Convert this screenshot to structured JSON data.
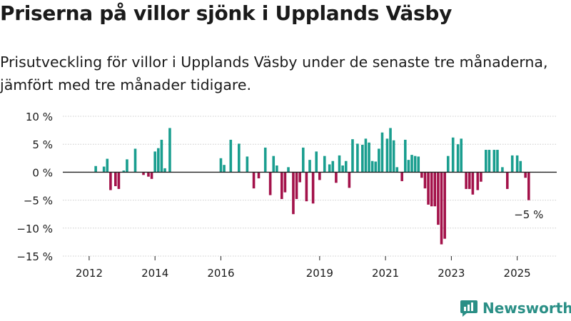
{
  "title": "Priserna på villor sjönk i Upplands Väsby",
  "subtitle": "Prisutveckling för villor i Upplands Väsby under de senaste tre månaderna, jämfört med tre månader tidigare.",
  "brand": "Newsworthy",
  "colors": {
    "positive": "#1a9e8f",
    "negative": "#a3124a",
    "text": "#1a1a1a",
    "axis": "#222222",
    "grid": "#cccccc",
    "brand": "#2a8f86"
  },
  "chart_data": {
    "type": "bar",
    "ylabel": "",
    "xlabel": "",
    "ylim": [
      -15,
      10
    ],
    "y_ticks": [
      10,
      5,
      0,
      -5,
      -10,
      -15
    ],
    "y_tick_labels": [
      "10 %",
      "5 %",
      "0 %",
      "−5 %",
      "−10 %",
      "−15 %"
    ],
    "x_ticks": [
      2012,
      2014,
      2016,
      2019,
      2021,
      2023,
      2025
    ],
    "x_tick_labels": [
      "2012",
      "2014",
      "2016",
      "2019",
      "2021",
      "2023",
      "2025"
    ],
    "x_start": 2011.2,
    "x_end": 2026.2,
    "grid": true,
    "last_value_label": "−5 %",
    "x": [
      2012.2,
      2012.45,
      2012.55,
      2012.65,
      2012.8,
      2012.9,
      2013.05,
      2013.15,
      2013.4,
      2013.65,
      2013.8,
      2013.9,
      2014.0,
      2014.1,
      2014.2,
      2014.3,
      2014.45,
      2014.6,
      2014.7,
      2014.8,
      2014.95,
      2015.05,
      2015.15,
      2015.3,
      2015.45,
      2015.65,
      2015.75,
      2015.9,
      2016.0,
      2016.1,
      2016.3,
      2016.55,
      2016.8,
      2017.0,
      2017.15,
      2017.35,
      2017.5,
      2017.6,
      2017.7,
      2017.85,
      2017.95,
      2018.05,
      2018.2,
      2018.3,
      2018.4,
      2018.5,
      2018.6,
      2018.7,
      2018.8,
      2018.9,
      2019.0,
      2019.15,
      2019.3,
      2019.4,
      2019.5,
      2019.6,
      2019.7,
      2019.8,
      2019.9,
      2020.0,
      2020.15,
      2020.3,
      2020.4,
      2020.5,
      2020.6,
      2020.7,
      2020.8,
      2020.9,
      2021.05,
      2021.15,
      2021.25,
      2021.35,
      2021.5,
      2021.6,
      2021.7,
      2021.8,
      2021.9,
      2022.0,
      2022.1,
      2022.2,
      2022.3,
      2022.4,
      2022.5,
      2022.6,
      2022.7,
      2022.8,
      2022.9,
      2023.05,
      2023.2,
      2023.3,
      2023.45,
      2023.55,
      2023.65,
      2023.8,
      2023.9,
      2024.05,
      2024.15,
      2024.3,
      2024.4,
      2024.55,
      2024.7,
      2024.85,
      2025.0,
      2025.1,
      2025.25,
      2025.35
    ],
    "values": [
      1.1,
      1.0,
      2.4,
      -3.2,
      -2.5,
      -3.0,
      0.3,
      2.3,
      4.2,
      -0.5,
      -0.8,
      -1.2,
      3.7,
      4.3,
      5.8,
      0.7,
      7.9,
      0,
      0,
      0,
      0,
      0,
      0,
      0,
      0,
      0,
      0,
      0,
      2.5,
      1.3,
      5.8,
      5.1,
      2.8,
      -2.9,
      -1.1,
      4.4,
      -4.1,
      2.9,
      1.2,
      -4.8,
      -3.6,
      0.9,
      -7.5,
      -4.8,
      -1.8,
      4.4,
      -5.2,
      2.2,
      -5.6,
      3.7,
      -1.4,
      2.9,
      1.4,
      2.0,
      -1.9,
      3.0,
      1.2,
      2.0,
      -2.8,
      5.9,
      5.1,
      4.9,
      6.0,
      5.3,
      2.0,
      1.9,
      4.2,
      7.1,
      6.0,
      7.9,
      5.7,
      0.9,
      -1.6,
      5.8,
      2.2,
      3.1,
      2.9,
      2.8,
      -1.0,
      -2.9,
      -5.8,
      -6.1,
      -6.1,
      -9.4,
      -12.9,
      -11.9,
      2.9,
      6.2,
      5.0,
      6.0,
      -3.0,
      -3.0,
      -4.0,
      -3.2,
      -1.7,
      4.0,
      4.0,
      4.0,
      4.0,
      0.9,
      -3.0,
      3.0,
      3.0,
      2.0,
      -1.0,
      -5.0
    ]
  }
}
